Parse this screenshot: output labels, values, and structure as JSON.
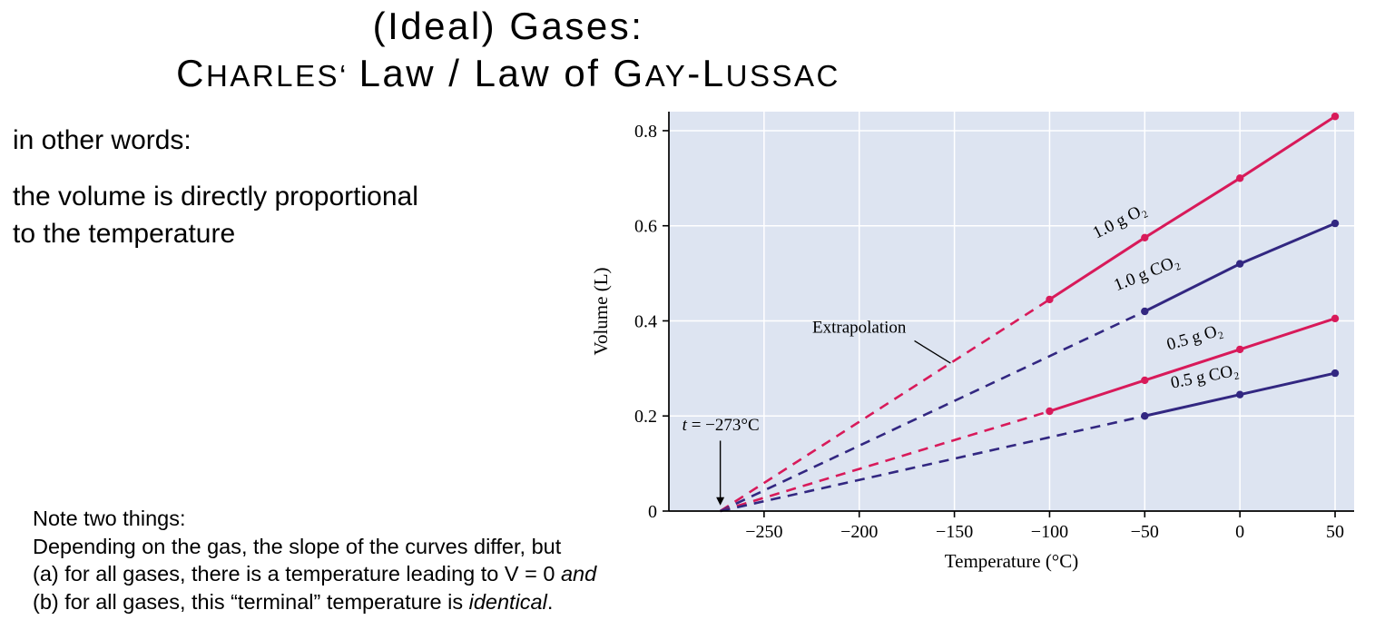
{
  "title": {
    "line1": "(Ideal) Gases:",
    "line2_segments": [
      {
        "t": "C",
        "s": "cap"
      },
      {
        "t": "HARLES‘ ",
        "s": "small"
      },
      {
        "t": "Law / Law of ",
        "s": "normal"
      },
      {
        "t": "G",
        "s": "cap"
      },
      {
        "t": "AY",
        "s": "small"
      },
      {
        "t": "-",
        "s": "normal"
      },
      {
        "t": "L",
        "s": "cap"
      },
      {
        "t": "USSAC",
        "s": "small"
      }
    ]
  },
  "intro": {
    "line1": "in other words:",
    "line2": "the volume is directly proportional",
    "line3": "to the temperature"
  },
  "note": {
    "lines": [
      [
        {
          "t": "Note two things:"
        }
      ],
      [
        {
          "t": "Depending on the gas, the slope of the curves differ, but"
        }
      ],
      [
        {
          "t": "(a) for all gases, there is a temperature leading to V = 0 "
        },
        {
          "t": "and",
          "i": true
        }
      ],
      [
        {
          "t": "(b) for all gases, this “terminal” temperature is "
        },
        {
          "t": "identical",
          "i": true
        },
        {
          "t": "."
        }
      ]
    ]
  },
  "chart_data": {
    "type": "line",
    "title": "",
    "xlabel": "Temperature (°C)",
    "ylabel": "Volume (L)",
    "xlim": [
      -300,
      60
    ],
    "ylim": [
      0,
      0.84
    ],
    "xticks": [
      -250,
      -200,
      -150,
      -100,
      -50,
      0,
      50
    ],
    "yticks": [
      0,
      0.2,
      0.4,
      0.6,
      0.8
    ],
    "grid": true,
    "plot_bg": "#dde4f1",
    "grid_color": "#ffffff",
    "convergence_point": {
      "t": -273,
      "v": 0
    },
    "series": [
      {
        "name": "1.0 g O₂",
        "color": "#d81a5a",
        "solid": [
          [
            -100,
            0.445
          ],
          [
            -50,
            0.575
          ],
          [
            0,
            0.7
          ],
          [
            50,
            0.83
          ]
        ],
        "dashed_from": [
          -273,
          0
        ],
        "label_pos": [
          -62,
          0.6
        ],
        "label_angle": -27
      },
      {
        "name": "1.0 g CO₂",
        "color": "#322781",
        "solid": [
          [
            -50,
            0.42
          ],
          [
            0,
            0.52
          ],
          [
            50,
            0.605
          ]
        ],
        "dashed_from": [
          -273,
          0
        ],
        "label_pos": [
          -48,
          0.49
        ],
        "label_angle": -22
      },
      {
        "name": "0.5 g O₂",
        "color": "#d81a5a",
        "solid": [
          [
            -100,
            0.21
          ],
          [
            -50,
            0.275
          ],
          [
            0,
            0.34
          ],
          [
            50,
            0.405
          ]
        ],
        "dashed_from": [
          -273,
          0
        ],
        "label_pos": [
          -23,
          0.355
        ],
        "label_angle": -16
      },
      {
        "name": "0.5 g CO₂",
        "color": "#322781",
        "solid": [
          [
            -50,
            0.2
          ],
          [
            0,
            0.245
          ],
          [
            50,
            0.29
          ]
        ],
        "dashed_from": [
          -273,
          0
        ],
        "label_pos": [
          -18,
          0.272
        ],
        "label_angle": -11
      }
    ],
    "annotations": {
      "extrapolation": {
        "text": "Extrapolation",
        "pos": [
          -200,
          0.375
        ],
        "leader_from": [
          -171,
          0.358
        ],
        "leader_to": [
          -152,
          0.311
        ]
      },
      "terminal_temp": {
        "prefix_italic": "t",
        "text": " = −273°C",
        "pos": [
          -293,
          0.17
        ],
        "arrow_x": -273,
        "arrow_v_from": 0.148,
        "arrow_v_to": 0.012
      }
    }
  }
}
